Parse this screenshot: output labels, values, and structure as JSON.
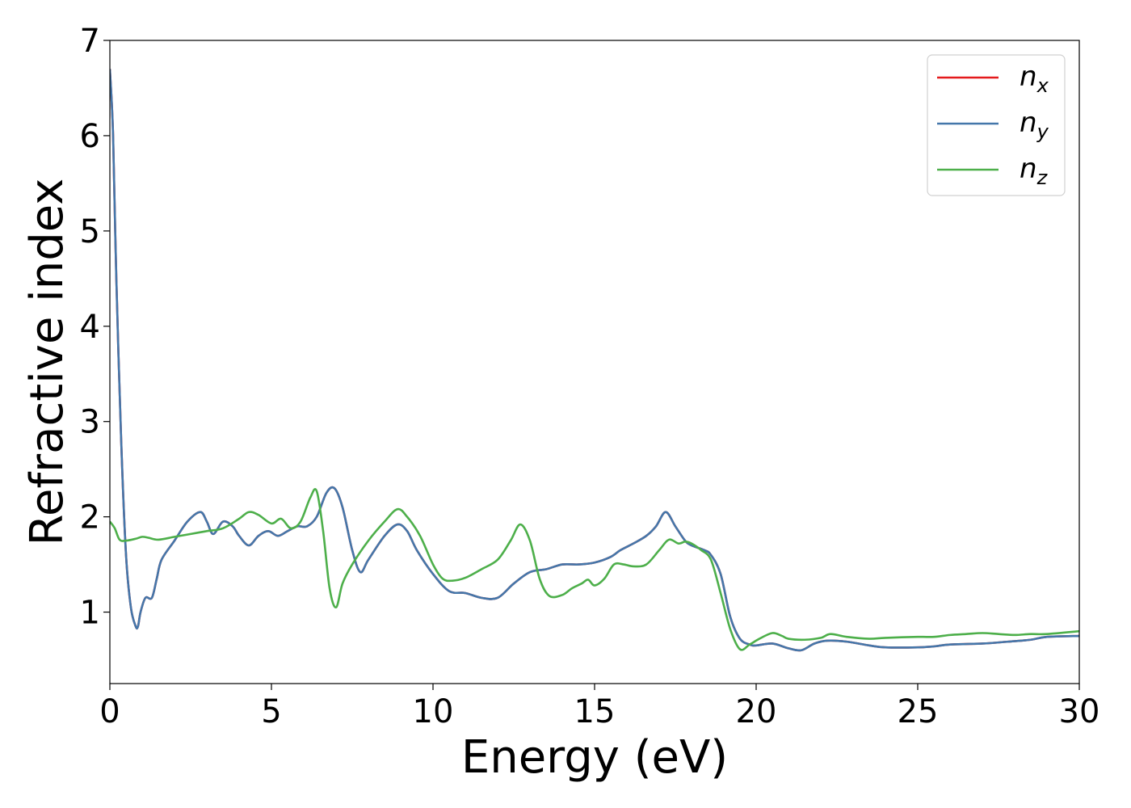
{
  "chart_data": {
    "type": "line",
    "xlabel": "Energy (eV)",
    "ylabel": "Refractive index",
    "xlim": [
      0,
      30
    ],
    "ylim": [
      0.25,
      7.0
    ],
    "xticks": [
      0,
      5,
      10,
      15,
      20,
      25,
      30
    ],
    "yticks": [
      1,
      2,
      3,
      4,
      5,
      6,
      7
    ],
    "grid": false,
    "legend_position": "top-right",
    "series": [
      {
        "name": "n_x",
        "label_base": "n",
        "label_sub": "x",
        "color": "#e41a1c",
        "x": [
          0,
          0.1,
          0.2,
          0.35,
          0.5,
          0.65,
          0.8,
          0.87,
          0.95,
          1.1,
          1.3,
          1.45,
          1.6,
          2.0,
          2.4,
          2.8,
          3.0,
          3.2,
          3.5,
          3.8,
          4.0,
          4.3,
          4.6,
          4.9,
          5.2,
          5.5,
          5.8,
          6.1,
          6.4,
          6.7,
          6.95,
          7.2,
          7.5,
          7.75,
          8.0,
          8.5,
          8.9,
          9.2,
          9.5,
          10.0,
          10.5,
          11.0,
          11.5,
          12.0,
          12.5,
          13.0,
          13.5,
          14.0,
          14.5,
          15.0,
          15.5,
          15.8,
          16.2,
          16.6,
          16.9,
          17.2,
          17.5,
          17.8,
          18.0,
          18.4,
          18.6,
          18.9,
          19.2,
          19.5,
          19.8,
          20.0,
          20.5,
          21.0,
          21.4,
          21.8,
          22.2,
          22.8,
          23.5,
          24.0,
          25.0,
          25.5,
          26.0,
          27.0,
          27.8,
          28.5,
          29.0,
          30.0
        ],
        "y": [
          6.7,
          6.0,
          4.5,
          2.8,
          1.6,
          1.05,
          0.85,
          0.85,
          1.0,
          1.15,
          1.15,
          1.35,
          1.55,
          1.75,
          1.95,
          2.05,
          1.95,
          1.82,
          1.95,
          1.9,
          1.8,
          1.7,
          1.8,
          1.85,
          1.8,
          1.85,
          1.9,
          1.9,
          2.0,
          2.25,
          2.3,
          2.1,
          1.65,
          1.42,
          1.55,
          1.8,
          1.92,
          1.85,
          1.65,
          1.4,
          1.22,
          1.2,
          1.15,
          1.15,
          1.3,
          1.42,
          1.45,
          1.5,
          1.5,
          1.52,
          1.58,
          1.65,
          1.72,
          1.8,
          1.9,
          2.05,
          1.9,
          1.75,
          1.7,
          1.65,
          1.6,
          1.4,
          0.95,
          0.72,
          0.66,
          0.65,
          0.67,
          0.62,
          0.6,
          0.67,
          0.7,
          0.69,
          0.65,
          0.63,
          0.63,
          0.64,
          0.66,
          0.67,
          0.69,
          0.71,
          0.74,
          0.75
        ]
      },
      {
        "name": "n_y",
        "label_base": "n",
        "label_sub": "y",
        "color": "#4477aa",
        "x": [
          0,
          0.1,
          0.2,
          0.35,
          0.5,
          0.65,
          0.8,
          0.87,
          0.95,
          1.1,
          1.3,
          1.45,
          1.6,
          2.0,
          2.4,
          2.8,
          3.0,
          3.2,
          3.5,
          3.8,
          4.0,
          4.3,
          4.6,
          4.9,
          5.2,
          5.5,
          5.8,
          6.1,
          6.4,
          6.7,
          6.95,
          7.2,
          7.5,
          7.75,
          8.0,
          8.5,
          8.9,
          9.2,
          9.5,
          10.0,
          10.5,
          11.0,
          11.5,
          12.0,
          12.5,
          13.0,
          13.5,
          14.0,
          14.5,
          15.0,
          15.5,
          15.8,
          16.2,
          16.6,
          16.9,
          17.2,
          17.5,
          17.8,
          18.0,
          18.4,
          18.6,
          18.9,
          19.2,
          19.5,
          19.8,
          20.0,
          20.5,
          21.0,
          21.4,
          21.8,
          22.2,
          22.8,
          23.5,
          24.0,
          25.0,
          25.5,
          26.0,
          27.0,
          27.8,
          28.5,
          29.0,
          30.0
        ],
        "y": [
          6.7,
          6.0,
          4.5,
          2.8,
          1.6,
          1.05,
          0.85,
          0.85,
          1.0,
          1.15,
          1.15,
          1.35,
          1.55,
          1.75,
          1.95,
          2.05,
          1.95,
          1.82,
          1.95,
          1.9,
          1.8,
          1.7,
          1.8,
          1.85,
          1.8,
          1.85,
          1.9,
          1.9,
          2.0,
          2.25,
          2.3,
          2.1,
          1.65,
          1.42,
          1.55,
          1.8,
          1.92,
          1.85,
          1.65,
          1.4,
          1.22,
          1.2,
          1.15,
          1.15,
          1.3,
          1.42,
          1.45,
          1.5,
          1.5,
          1.52,
          1.58,
          1.65,
          1.72,
          1.8,
          1.9,
          2.05,
          1.9,
          1.75,
          1.7,
          1.65,
          1.6,
          1.4,
          0.95,
          0.72,
          0.66,
          0.65,
          0.67,
          0.62,
          0.6,
          0.67,
          0.7,
          0.69,
          0.65,
          0.63,
          0.63,
          0.64,
          0.66,
          0.67,
          0.69,
          0.71,
          0.74,
          0.75
        ]
      },
      {
        "name": "n_z",
        "label_base": "n",
        "label_sub": "z",
        "color": "#4daf4a",
        "x": [
          0,
          0.15,
          0.3,
          0.5,
          0.8,
          1.0,
          1.2,
          1.5,
          2.0,
          2.5,
          3.0,
          3.5,
          4.0,
          4.3,
          4.6,
          5.0,
          5.3,
          5.6,
          5.9,
          6.2,
          6.4,
          6.6,
          6.8,
          7.0,
          7.2,
          7.5,
          8.0,
          8.5,
          8.9,
          9.2,
          9.6,
          10.0,
          10.3,
          10.6,
          11.0,
          11.5,
          12.0,
          12.4,
          12.7,
          13.0,
          13.3,
          13.6,
          14.0,
          14.3,
          14.6,
          14.8,
          15.0,
          15.3,
          15.6,
          15.9,
          16.2,
          16.6,
          17.0,
          17.3,
          17.6,
          17.8,
          18.0,
          18.3,
          18.6,
          18.9,
          19.2,
          19.5,
          19.8,
          20.1,
          20.5,
          20.8,
          21.0,
          21.5,
          22.0,
          22.3,
          22.8,
          23.5,
          24.0,
          25.0,
          25.5,
          26.0,
          26.5,
          27.0,
          27.5,
          28.0,
          28.5,
          29.0,
          30.0
        ],
        "y": [
          1.95,
          1.88,
          1.76,
          1.75,
          1.77,
          1.79,
          1.78,
          1.76,
          1.79,
          1.82,
          1.85,
          1.88,
          1.98,
          2.05,
          2.02,
          1.93,
          1.98,
          1.88,
          1.95,
          2.2,
          2.27,
          1.85,
          1.25,
          1.05,
          1.3,
          1.5,
          1.75,
          1.95,
          2.08,
          2.0,
          1.8,
          1.5,
          1.35,
          1.33,
          1.36,
          1.45,
          1.55,
          1.75,
          1.92,
          1.75,
          1.35,
          1.17,
          1.18,
          1.25,
          1.3,
          1.34,
          1.28,
          1.35,
          1.5,
          1.5,
          1.48,
          1.5,
          1.65,
          1.76,
          1.72,
          1.74,
          1.72,
          1.65,
          1.55,
          1.2,
          0.82,
          0.61,
          0.66,
          0.72,
          0.78,
          0.75,
          0.72,
          0.71,
          0.73,
          0.77,
          0.74,
          0.72,
          0.73,
          0.74,
          0.74,
          0.76,
          0.77,
          0.78,
          0.77,
          0.76,
          0.77,
          0.77,
          0.8
        ]
      }
    ]
  }
}
